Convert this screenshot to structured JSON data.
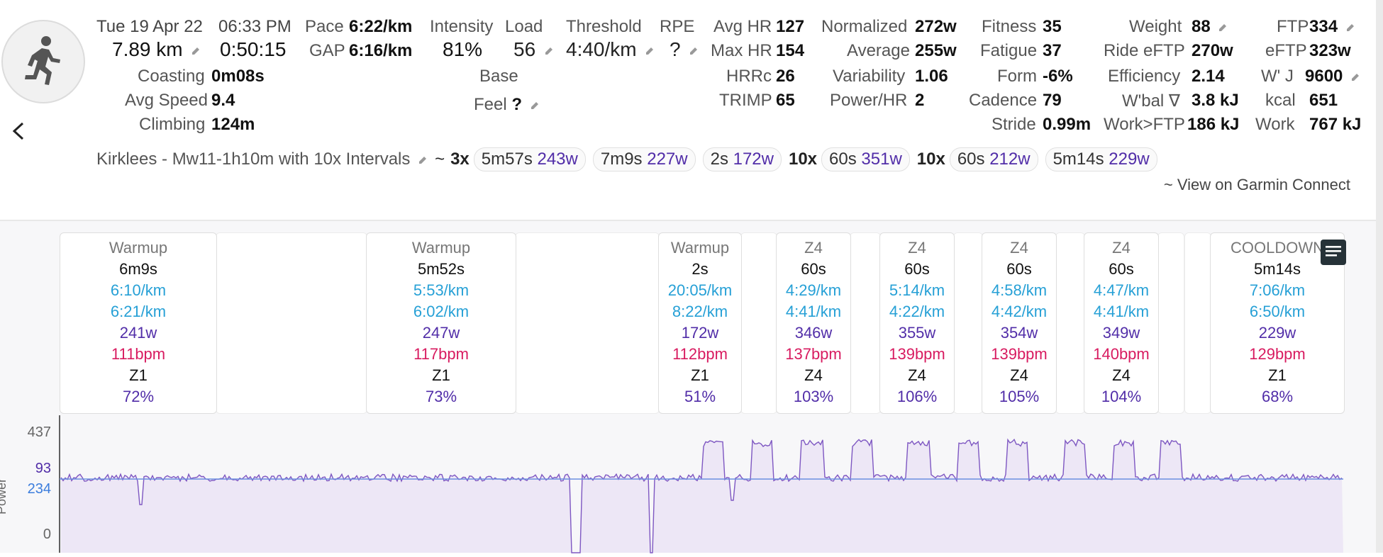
{
  "activity": {
    "date": "Tue 19 Apr 22",
    "time": "06:33 PM",
    "distance": "7.89 km",
    "duration": "0:50:15",
    "pace_label": "Pace",
    "pace": "6:22/km",
    "gap_label": "GAP",
    "gap": "6:16/km",
    "intensity_label": "Intensity",
    "intensity": "81%",
    "load_label": "Load",
    "load": "56",
    "threshold_label": "Threshold",
    "threshold": "4:40/km",
    "rpe_label": "RPE",
    "rpe": "?",
    "coasting_label": "Coasting",
    "coasting": "0m08s",
    "avg_speed_label": "Avg Speed",
    "avg_speed": "9.4",
    "climbing_label": "Climbing",
    "climbing": "124m",
    "base": "Base",
    "feel_label": "Feel",
    "feel": "?",
    "avg_hr_label": "Avg HR",
    "avg_hr": "127",
    "max_hr_label": "Max HR",
    "max_hr": "154",
    "hrrc_label": "HRRc",
    "hrrc": "26",
    "trimp_label": "TRIMP",
    "trimp": "65",
    "normalized_label": "Normalized",
    "normalized": "272w",
    "average_label": "Average",
    "average": "255w",
    "variability_label": "Variability",
    "variability": "1.06",
    "power_hr_label": "Power/HR",
    "power_hr": "2",
    "fitness_label": "Fitness",
    "fitness": "35",
    "fatigue_label": "Fatigue",
    "fatigue": "37",
    "form_label": "Form",
    "form": "-6%",
    "cadence_label": "Cadence",
    "cadence": "79",
    "stride_label": "Stride",
    "stride": "0.99m",
    "weight_label": "Weight",
    "weight": "88",
    "ride_eftp_label": "Ride eFTP",
    "ride_eftp": "270w",
    "efficiency_label": "Efficiency",
    "efficiency": "2.14",
    "wbal_label": "W'bal ∇",
    "wbal": "3.8 kJ",
    "work_ftp_label": "Work>FTP",
    "work_ftp": "186 kJ",
    "ftp_label": "FTP",
    "ftp": "334",
    "eftp_label": "eFTP",
    "eftp": "323w",
    "wj_label": "W' J",
    "wj": "9600",
    "kcal_label": "kcal",
    "kcal": "651",
    "work_label": "Work",
    "work": "767 kJ"
  },
  "workout": {
    "name": "Kirklees - Mw11-1h10m with 10x Intervals",
    "tilde": "~",
    "groups": [
      {
        "repeat": "3x",
        "duration": "5m57s",
        "watts": "243w"
      },
      {
        "repeat": "",
        "duration": "7m9s",
        "watts": "227w"
      },
      {
        "repeat": "",
        "duration": "2s",
        "watts": "172w"
      },
      {
        "repeat": "10x",
        "duration": "60s",
        "watts": "351w"
      },
      {
        "repeat": "10x",
        "duration": "60s",
        "watts": "212w"
      },
      {
        "repeat": "",
        "duration": "5m14s",
        "watts": "229w"
      }
    ],
    "garmin_link": "~ View on Garmin Connect"
  },
  "intervals": [
    {
      "name": "Warmup",
      "duration": "6m9s",
      "pace": "6:10/km",
      "gap": "6:21/km",
      "power": "241w",
      "hr": "111bpm",
      "zone": "Z1",
      "pct": "72%"
    },
    {
      "name": "Warmup",
      "duration": "5m52s",
      "pace": "5:53/km",
      "gap": "6:02/km",
      "power": "247w",
      "hr": "117bpm",
      "zone": "Z1",
      "pct": "73%"
    },
    {
      "name": "Warmup",
      "duration": "2s",
      "pace": "20:05/km",
      "gap": "8:22/km",
      "power": "172w",
      "hr": "112bpm",
      "zone": "Z1",
      "pct": "51%"
    },
    {
      "name": "Z4",
      "duration": "60s",
      "pace": "4:29/km",
      "gap": "4:41/km",
      "power": "346w",
      "hr": "137bpm",
      "zone": "Z4",
      "pct": "103%"
    },
    {
      "name": "Z4",
      "duration": "60s",
      "pace": "5:14/km",
      "gap": "4:22/km",
      "power": "355w",
      "hr": "139bpm",
      "zone": "Z4",
      "pct": "106%"
    },
    {
      "name": "Z4",
      "duration": "60s",
      "pace": "4:58/km",
      "gap": "4:42/km",
      "power": "354w",
      "hr": "139bpm",
      "zone": "Z4",
      "pct": "105%"
    },
    {
      "name": "Z4",
      "duration": "60s",
      "pace": "4:47/km",
      "gap": "4:41/km",
      "power": "349w",
      "hr": "140bpm",
      "zone": "Z4",
      "pct": "104%"
    },
    {
      "name": "COOLDOWN",
      "duration": "5m14s",
      "pace": "7:06/km",
      "gap": "6:50/km",
      "power": "229w",
      "hr": "129bpm",
      "zone": "Z1",
      "pct": "68%"
    }
  ],
  "chart": {
    "y_max": "437",
    "y_ref": "93",
    "y_avg": "234",
    "y_zero": "0",
    "axis_label": "Power",
    "colors": {
      "power": "#7e57c2",
      "fill": "#ede7f6",
      "avg_line": "#6b8fe0"
    }
  }
}
